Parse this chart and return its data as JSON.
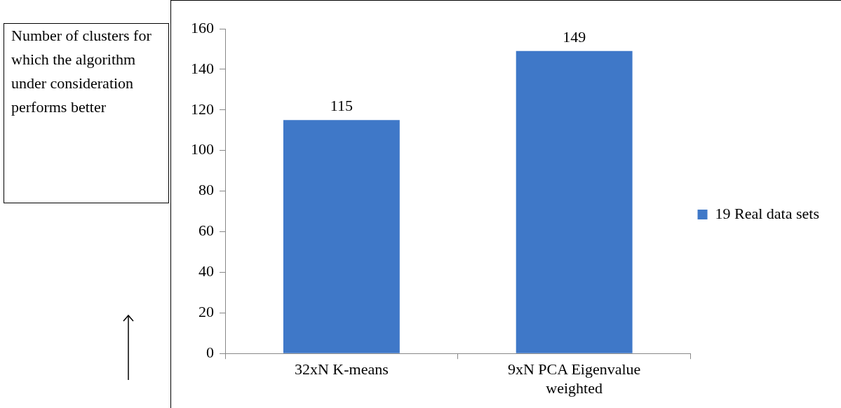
{
  "chart_data": {
    "type": "bar",
    "ylabel": "Number of clusters for which the algorithm under consideration performs better",
    "categories": [
      "32xN K-means",
      "9xN PCA Eigenvalue weighted"
    ],
    "series": [
      {
        "name": "19 Real data sets",
        "color": "#3f78c8",
        "values": [
          115,
          149
        ]
      }
    ],
    "ylim": [
      0,
      160
    ],
    "yticks": [
      0,
      20,
      40,
      60,
      80,
      100,
      120,
      140,
      160
    ],
    "grid": false,
    "legend": "right",
    "data_labels": true
  }
}
